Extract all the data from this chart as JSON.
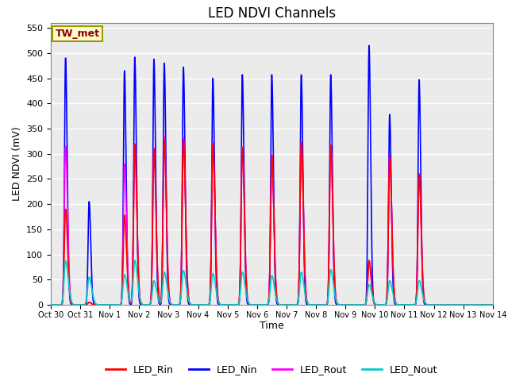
{
  "title": "LED NDVI Channels",
  "xlabel": "Time",
  "ylabel": "LED NDVI (mV)",
  "ylim": [
    0,
    560
  ],
  "yticks": [
    0,
    50,
    100,
    150,
    200,
    250,
    300,
    350,
    400,
    450,
    500,
    550
  ],
  "xtick_labels": [
    "Oct 30",
    "Oct 31",
    "Nov 1",
    "Nov 2",
    "Nov 3",
    "Nov 4",
    "Nov 5",
    "Nov 6",
    "Nov 7",
    "Nov 8",
    "Nov 9",
    "Nov 10",
    "Nov 11",
    "Nov 12",
    "Nov 13",
    "Nov 14"
  ],
  "annotation_text": "TW_met",
  "annotation_color": "#8B0000",
  "annotation_bg": "#FFFACD",
  "annotation_border": "#999900",
  "colors": {
    "LED_Rin": "#FF0000",
    "LED_Nin": "#0000FF",
    "LED_Rout": "#FF00FF",
    "LED_Nout": "#00CCCC"
  },
  "bg_color": "#EBEBEB",
  "grid_color": "#FFFFFF",
  "title_fontsize": 12,
  "axis_fontsize": 9,
  "tick_fontsize": 8,
  "legend_fontsize": 9
}
